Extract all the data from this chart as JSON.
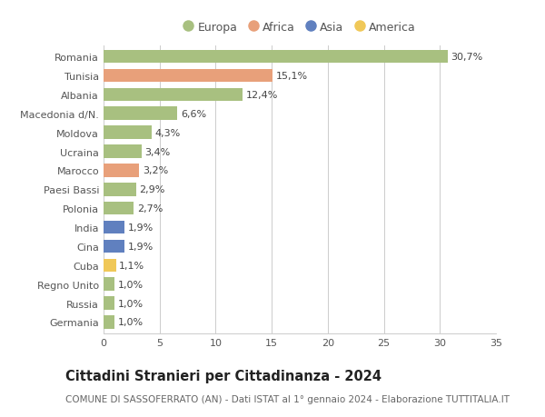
{
  "categories": [
    "Romania",
    "Tunisia",
    "Albania",
    "Macedonia d/N.",
    "Moldova",
    "Ucraina",
    "Marocco",
    "Paesi Bassi",
    "Polonia",
    "India",
    "Cina",
    "Cuba",
    "Regno Unito",
    "Russia",
    "Germania"
  ],
  "values": [
    30.7,
    15.1,
    12.4,
    6.6,
    4.3,
    3.4,
    3.2,
    2.9,
    2.7,
    1.9,
    1.9,
    1.1,
    1.0,
    1.0,
    1.0
  ],
  "labels": [
    "30,7%",
    "15,1%",
    "12,4%",
    "6,6%",
    "4,3%",
    "3,4%",
    "3,2%",
    "2,9%",
    "2,7%",
    "1,9%",
    "1,9%",
    "1,1%",
    "1,0%",
    "1,0%",
    "1,0%"
  ],
  "continents": [
    "Europa",
    "Africa",
    "Europa",
    "Europa",
    "Europa",
    "Europa",
    "Africa",
    "Europa",
    "Europa",
    "Asia",
    "Asia",
    "America",
    "Europa",
    "Europa",
    "Europa"
  ],
  "continent_colors": {
    "Europa": "#a8c080",
    "Africa": "#e8a07a",
    "Asia": "#6080bf",
    "America": "#f0c858"
  },
  "legend_items": [
    "Europa",
    "Africa",
    "Asia",
    "America"
  ],
  "legend_colors": [
    "#a8c080",
    "#e8a07a",
    "#6080bf",
    "#f0c858"
  ],
  "xlim": [
    0,
    35
  ],
  "xticks": [
    0,
    5,
    10,
    15,
    20,
    25,
    30,
    35
  ],
  "title": "Cittadini Stranieri per Cittadinanza - 2024",
  "subtitle": "COMUNE DI SASSOFERRATO (AN) - Dati ISTAT al 1° gennaio 2024 - Elaborazione TUTTITALIA.IT",
  "background_color": "#ffffff",
  "grid_color": "#cccccc",
  "bar_height": 0.7,
  "label_fontsize": 8,
  "tick_fontsize": 8,
  "title_fontsize": 10.5,
  "subtitle_fontsize": 7.5
}
